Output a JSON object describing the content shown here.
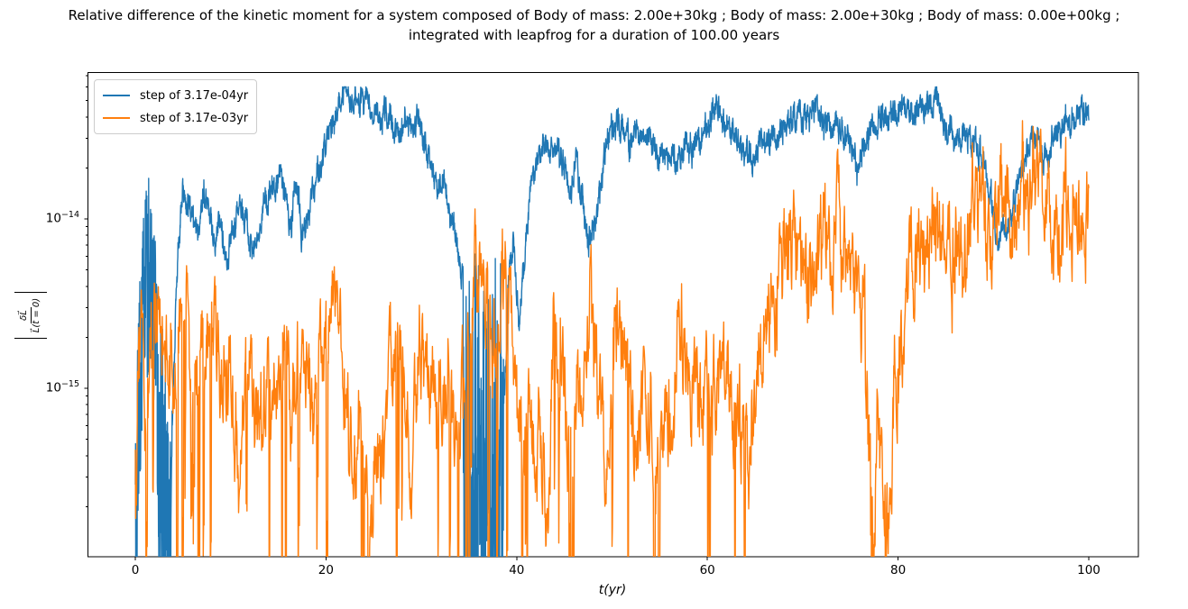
{
  "chart_data": {
    "type": "line",
    "title": "Relative difference of the kinetic moment for a system composed of Body of mass: 2.00e+30kg ; Body of mass: 2.00e+30kg ; Body of mass: 0.00e+00kg ;\nintegrated with leapfrog for a duration of 100.00 years",
    "xlabel": "t(yr)",
    "ylabel": "|δL⃗ / L⃗(t = 0)|",
    "ylabel_numerator": "δL⃗",
    "ylabel_denominator": "L⃗(t = 0)",
    "x_axis": {
      "min": -5.0,
      "max": 105.2,
      "ticks": [
        0,
        20,
        40,
        60,
        80,
        100
      ]
    },
    "y_axis": {
      "scale": "log",
      "min": 1e-16,
      "max": 7.4e-14,
      "major_ticks": [
        {
          "base": "10",
          "exp": "−14",
          "log10": -14
        },
        {
          "base": "10",
          "exp": "−15",
          "log10": -15
        }
      ],
      "minor_tick_decades": [
        -16,
        -15,
        -14
      ]
    },
    "grid": false,
    "legend": [
      {
        "label": "step of 3.17e-04yr",
        "color": "#1f77b4"
      },
      {
        "label": "step of 3.17e-03yr",
        "color": "#ff7f0e"
      }
    ],
    "frame_color": "#000000",
    "background": "#ffffff",
    "series": [
      {
        "name": "step of 3.17e-04yr",
        "color": "#1f77b4",
        "n_points": 4200,
        "seed": 1234,
        "k": 0.3,
        "noise": 0.055,
        "jitter": 0.06,
        "bands": [
          [
            0.0,
            0.12,
            -16.2,
            0.9,
            1.0,
            0
          ],
          [
            0.12,
            2.15,
            -1.0,
            1.3,
            1.0,
            1
          ],
          [
            2.3,
            3.85,
            -16.2,
            1.55,
            1.6,
            0
          ],
          [
            34.4,
            38.65,
            -16.2,
            2.0,
            2.2,
            0
          ]
        ],
        "trend_log10": [
          [
            0.0,
            -16.0
          ],
          [
            0.1,
            -15.3
          ],
          [
            0.5,
            -14.6
          ],
          [
            1.0,
            -14.15
          ],
          [
            1.6,
            -13.9
          ],
          [
            2.1,
            -14.3
          ],
          [
            3.0,
            -15.5
          ],
          [
            3.85,
            -15.2
          ],
          [
            4.3,
            -14.3
          ],
          [
            4.9,
            -13.85
          ],
          [
            5.6,
            -13.9
          ],
          [
            6.3,
            -14.12
          ],
          [
            7.0,
            -13.85
          ],
          [
            7.6,
            -13.84
          ],
          [
            8.1,
            -14.15
          ],
          [
            8.8,
            -13.95
          ],
          [
            9.5,
            -14.28
          ],
          [
            10.3,
            -14.05
          ],
          [
            11.0,
            -13.95
          ],
          [
            11.7,
            -14.05
          ],
          [
            12.4,
            -14.22
          ],
          [
            13.1,
            -13.95
          ],
          [
            14.0,
            -13.88
          ],
          [
            15.0,
            -13.8
          ],
          [
            15.8,
            -13.85
          ],
          [
            16.3,
            -14.1
          ],
          [
            16.8,
            -13.68
          ],
          [
            17.4,
            -14.1
          ],
          [
            18.0,
            -14.0
          ],
          [
            19.0,
            -13.75
          ],
          [
            20.0,
            -13.55
          ],
          [
            21.0,
            -13.38
          ],
          [
            21.8,
            -13.27
          ],
          [
            22.6,
            -13.28
          ],
          [
            23.4,
            -13.3
          ],
          [
            24.2,
            -13.3
          ],
          [
            24.8,
            -13.38
          ],
          [
            25.5,
            -13.42
          ],
          [
            26.2,
            -13.38
          ],
          [
            27.0,
            -13.45
          ],
          [
            27.7,
            -13.5
          ],
          [
            28.3,
            -13.42
          ],
          [
            29.0,
            -13.48
          ],
          [
            29.6,
            -13.44
          ],
          [
            30.3,
            -13.55
          ],
          [
            31.0,
            -13.68
          ],
          [
            31.7,
            -13.82
          ],
          [
            32.3,
            -13.75
          ],
          [
            33.0,
            -14.0
          ],
          [
            33.7,
            -14.12
          ],
          [
            34.1,
            -14.35
          ],
          [
            38.7,
            -15.0
          ],
          [
            39.1,
            -14.35
          ],
          [
            39.6,
            -14.1
          ],
          [
            40.2,
            -14.6
          ],
          [
            40.7,
            -14.3
          ],
          [
            41.3,
            -13.85
          ],
          [
            42.0,
            -13.62
          ],
          [
            42.7,
            -13.58
          ],
          [
            43.5,
            -13.6
          ],
          [
            44.3,
            -13.62
          ],
          [
            45.0,
            -13.65
          ],
          [
            45.6,
            -13.85
          ],
          [
            46.2,
            -13.65
          ],
          [
            46.8,
            -13.9
          ],
          [
            47.4,
            -14.15
          ],
          [
            47.8,
            -14.1
          ],
          [
            48.3,
            -13.95
          ],
          [
            49.0,
            -13.7
          ],
          [
            49.7,
            -13.5
          ],
          [
            50.4,
            -13.42
          ],
          [
            51.1,
            -13.45
          ],
          [
            51.8,
            -13.55
          ],
          [
            52.5,
            -13.5
          ],
          [
            53.2,
            -13.55
          ],
          [
            54.0,
            -13.52
          ],
          [
            54.8,
            -13.62
          ],
          [
            55.5,
            -13.68
          ],
          [
            56.2,
            -13.6
          ],
          [
            56.8,
            -13.72
          ],
          [
            57.5,
            -13.6
          ],
          [
            58.3,
            -13.58
          ],
          [
            59.0,
            -13.55
          ],
          [
            59.8,
            -13.48
          ],
          [
            60.5,
            -13.38
          ],
          [
            61.1,
            -13.32
          ],
          [
            61.8,
            -13.42
          ],
          [
            62.5,
            -13.5
          ],
          [
            63.2,
            -13.55
          ],
          [
            64.0,
            -13.6
          ],
          [
            64.7,
            -13.65
          ],
          [
            65.3,
            -13.55
          ],
          [
            66.0,
            -13.58
          ],
          [
            66.8,
            -13.52
          ],
          [
            67.5,
            -13.48
          ],
          [
            68.3,
            -13.45
          ],
          [
            69.0,
            -13.42
          ],
          [
            69.8,
            -13.38
          ],
          [
            70.5,
            -13.42
          ],
          [
            71.3,
            -13.38
          ],
          [
            72.0,
            -13.42
          ],
          [
            72.8,
            -13.45
          ],
          [
            73.5,
            -13.42
          ],
          [
            74.3,
            -13.48
          ],
          [
            75.0,
            -13.55
          ],
          [
            75.7,
            -13.7
          ],
          [
            76.3,
            -13.55
          ],
          [
            77.0,
            -13.48
          ],
          [
            77.8,
            -13.42
          ],
          [
            78.5,
            -13.36
          ],
          [
            79.3,
            -13.4
          ],
          [
            80.0,
            -13.38
          ],
          [
            80.8,
            -13.35
          ],
          [
            81.5,
            -13.38
          ],
          [
            82.3,
            -13.35
          ],
          [
            83.0,
            -13.33
          ],
          [
            83.7,
            -13.3
          ],
          [
            84.3,
            -13.35
          ],
          [
            85.0,
            -13.48
          ],
          [
            85.8,
            -13.52
          ],
          [
            86.5,
            -13.48
          ],
          [
            87.3,
            -13.5
          ],
          [
            88.0,
            -13.52
          ],
          [
            88.7,
            -13.6
          ],
          [
            89.4,
            -13.78
          ],
          [
            90.0,
            -13.95
          ],
          [
            90.5,
            -14.12
          ],
          [
            91.0,
            -14.05
          ],
          [
            91.5,
            -14.1
          ],
          [
            92.0,
            -13.9
          ],
          [
            92.7,
            -13.78
          ],
          [
            93.4,
            -13.62
          ],
          [
            94.1,
            -13.5
          ],
          [
            94.7,
            -13.55
          ],
          [
            95.3,
            -13.65
          ],
          [
            95.9,
            -13.55
          ],
          [
            96.5,
            -13.52
          ],
          [
            97.2,
            -13.46
          ],
          [
            97.8,
            -13.43
          ],
          [
            98.4,
            -13.4
          ],
          [
            99.0,
            -13.42
          ],
          [
            99.5,
            -13.38
          ],
          [
            100.0,
            -13.37
          ]
        ]
      },
      {
        "name": "step of 3.17e-03yr",
        "color": "#ff7f0e",
        "n_points": 2400,
        "seed": 987,
        "k": 0.25,
        "noise": 0.22,
        "jitter": 0.14,
        "spike_prob": 0.035,
        "spike_until": 66,
        "spike_min": 0.8,
        "spike_range": 1.7,
        "bands": [
          [
            0.0,
            0.15,
            -16.2,
            1.0,
            1.0,
            0
          ],
          [
            77.1,
            77.6,
            -16.2,
            0.7,
            1.0,
            0
          ],
          [
            78.5,
            79.0,
            -16.2,
            0.7,
            1.0,
            0
          ]
        ],
        "trend_log10": [
          [
            0.0,
            -16.0
          ],
          [
            0.2,
            -15.0
          ],
          [
            0.5,
            -14.75
          ],
          [
            1.0,
            -15.2
          ],
          [
            1.5,
            -14.9
          ],
          [
            2.0,
            -14.7
          ],
          [
            2.7,
            -14.5
          ],
          [
            3.3,
            -14.75
          ],
          [
            4.0,
            -15.0
          ],
          [
            4.6,
            -14.7
          ],
          [
            5.2,
            -14.6
          ],
          [
            6.0,
            -14.95
          ],
          [
            6.8,
            -15.1
          ],
          [
            7.6,
            -14.6
          ],
          [
            8.4,
            -14.75
          ],
          [
            9.2,
            -15.0
          ],
          [
            10.0,
            -14.9
          ],
          [
            10.8,
            -15.5
          ],
          [
            11.5,
            -15.1
          ],
          [
            12.2,
            -14.9
          ],
          [
            13.0,
            -15.2
          ],
          [
            13.8,
            -15.0
          ],
          [
            14.6,
            -15.2
          ],
          [
            15.4,
            -14.85
          ],
          [
            16.2,
            -15.1
          ],
          [
            17.0,
            -14.9
          ],
          [
            17.8,
            -15.3
          ],
          [
            18.6,
            -14.95
          ],
          [
            19.4,
            -14.7
          ],
          [
            20.2,
            -14.55
          ],
          [
            21.0,
            -14.4
          ],
          [
            21.8,
            -14.8
          ],
          [
            22.6,
            -15.6
          ],
          [
            23.4,
            -15.2
          ],
          [
            24.2,
            -15.5
          ],
          [
            25.0,
            -15.3
          ],
          [
            25.8,
            -15.6
          ],
          [
            26.6,
            -15.0
          ],
          [
            27.4,
            -14.55
          ],
          [
            28.2,
            -15.0
          ],
          [
            29.0,
            -15.4
          ],
          [
            29.8,
            -14.8
          ],
          [
            30.5,
            -14.6
          ],
          [
            31.2,
            -14.9
          ],
          [
            32.0,
            -15.2
          ],
          [
            32.8,
            -14.8
          ],
          [
            33.6,
            -15.4
          ],
          [
            34.4,
            -15.0
          ],
          [
            35.2,
            -14.45
          ],
          [
            36.0,
            -14.28
          ],
          [
            36.8,
            -14.4
          ],
          [
            37.5,
            -14.75
          ],
          [
            38.3,
            -14.5
          ],
          [
            39.0,
            -14.45
          ],
          [
            39.8,
            -15.1
          ],
          [
            40.6,
            -15.4
          ],
          [
            41.4,
            -15.0
          ],
          [
            42.2,
            -15.3
          ],
          [
            43.0,
            -15.6
          ],
          [
            43.8,
            -14.55
          ],
          [
            44.6,
            -14.7
          ],
          [
            45.4,
            -15.3
          ],
          [
            46.2,
            -15.1
          ],
          [
            47.0,
            -14.8
          ],
          [
            47.7,
            -14.55
          ],
          [
            48.4,
            -15.2
          ],
          [
            49.2,
            -15.5
          ],
          [
            50.0,
            -14.9
          ],
          [
            50.6,
            -14.55
          ],
          [
            51.4,
            -14.8
          ],
          [
            52.2,
            -15.4
          ],
          [
            53.0,
            -15.1
          ],
          [
            53.8,
            -15.3
          ],
          [
            54.6,
            -15.6
          ],
          [
            55.4,
            -15.2
          ],
          [
            56.2,
            -15.0
          ],
          [
            57.0,
            -14.6
          ],
          [
            57.8,
            -14.75
          ],
          [
            58.6,
            -15.1
          ],
          [
            59.4,
            -14.9
          ],
          [
            60.2,
            -15.3
          ],
          [
            61.0,
            -15.0
          ],
          [
            61.8,
            -14.9
          ],
          [
            62.6,
            -15.4
          ],
          [
            63.4,
            -15.1
          ],
          [
            64.2,
            -15.3
          ],
          [
            65.0,
            -14.9
          ],
          [
            65.8,
            -14.7
          ],
          [
            66.5,
            -14.5
          ],
          [
            67.3,
            -14.3
          ],
          [
            68.0,
            -14.15
          ],
          [
            68.8,
            -14.08
          ],
          [
            69.5,
            -14.15
          ],
          [
            70.3,
            -14.3
          ],
          [
            71.0,
            -14.38
          ],
          [
            71.8,
            -14.2
          ],
          [
            72.5,
            -14.22
          ],
          [
            73.3,
            -14.15
          ],
          [
            74.0,
            -14.2
          ],
          [
            74.8,
            -14.3
          ],
          [
            75.5,
            -14.45
          ],
          [
            76.2,
            -14.7
          ],
          [
            76.8,
            -15.3
          ],
          [
            77.3,
            -16.0
          ],
          [
            77.8,
            -15.2
          ],
          [
            78.3,
            -15.6
          ],
          [
            78.8,
            -16.0
          ],
          [
            79.4,
            -15.1
          ],
          [
            80.0,
            -14.7
          ],
          [
            80.7,
            -14.45
          ],
          [
            81.4,
            -14.3
          ],
          [
            82.1,
            -14.18
          ],
          [
            82.8,
            -14.1
          ],
          [
            83.5,
            -14.08
          ],
          [
            84.2,
            -14.25
          ],
          [
            84.9,
            -14.18
          ],
          [
            85.6,
            -14.1
          ],
          [
            86.3,
            -14.05
          ],
          [
            87.0,
            -14.12
          ],
          [
            87.7,
            -14.06
          ],
          [
            88.4,
            -14.1
          ],
          [
            89.1,
            -14.0
          ],
          [
            89.8,
            -13.98
          ],
          [
            90.5,
            -14.04
          ],
          [
            91.2,
            -13.98
          ],
          [
            91.9,
            -14.08
          ],
          [
            92.6,
            -13.95
          ],
          [
            93.3,
            -13.88
          ],
          [
            94.0,
            -13.85
          ],
          [
            94.7,
            -13.83
          ],
          [
            95.4,
            -13.95
          ],
          [
            96.1,
            -14.05
          ],
          [
            96.8,
            -14.0
          ],
          [
            97.5,
            -13.92
          ],
          [
            98.2,
            -13.88
          ],
          [
            98.9,
            -13.9
          ],
          [
            99.5,
            -13.86
          ],
          [
            100.0,
            -13.88
          ]
        ]
      }
    ]
  }
}
